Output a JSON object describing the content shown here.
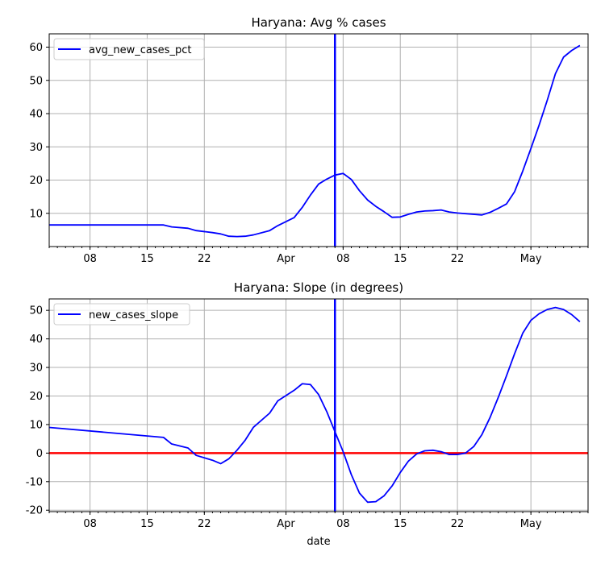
{
  "chart_data": [
    {
      "type": "line",
      "title": "Haryana: Avg % cases",
      "xlabel": "",
      "ylabel": "",
      "x_axis": "date",
      "xlim": [
        "2020-03-03",
        "2020-05-08"
      ],
      "ylim": [
        0,
        64
      ],
      "yticks": [
        10,
        20,
        30,
        40,
        50,
        60
      ],
      "xticks": [
        {
          "date": "2020-03-08",
          "label": "08"
        },
        {
          "date": "2020-03-15",
          "label": "15"
        },
        {
          "date": "2020-03-22",
          "label": "22"
        },
        {
          "date": "2020-04-01",
          "label": "Apr"
        },
        {
          "date": "2020-04-08",
          "label": "08"
        },
        {
          "date": "2020-04-15",
          "label": "15"
        },
        {
          "date": "2020-04-22",
          "label": "22"
        },
        {
          "date": "2020-05-01",
          "label": "May"
        }
      ],
      "grid": true,
      "legend_position": "top-left",
      "vline": {
        "date": "2020-04-07",
        "color": "#0000ff"
      },
      "series": [
        {
          "name": "avg_new_cases_pct",
          "color": "#0000ff",
          "points": [
            [
              "2020-03-03",
              6.5
            ],
            [
              "2020-03-17",
              6.5
            ],
            [
              "2020-03-18",
              5.9
            ],
            [
              "2020-03-20",
              5.5
            ],
            [
              "2020-03-21",
              4.8
            ],
            [
              "2020-03-22",
              4.5
            ],
            [
              "2020-03-23",
              4.2
            ],
            [
              "2020-03-24",
              3.8
            ],
            [
              "2020-03-25",
              3.1
            ],
            [
              "2020-03-26",
              3.0
            ],
            [
              "2020-03-27",
              3.1
            ],
            [
              "2020-03-28",
              3.5
            ],
            [
              "2020-03-30",
              4.8
            ],
            [
              "2020-03-31",
              6.3
            ],
            [
              "2020-04-02",
              8.7
            ],
            [
              "2020-04-03",
              11.8
            ],
            [
              "2020-04-04",
              15.5
            ],
            [
              "2020-04-05",
              18.8
            ],
            [
              "2020-04-06",
              20.3
            ],
            [
              "2020-04-07",
              21.5
            ],
            [
              "2020-04-08",
              22.0
            ],
            [
              "2020-04-09",
              20.2
            ],
            [
              "2020-04-10",
              16.8
            ],
            [
              "2020-04-11",
              14.0
            ],
            [
              "2020-04-12",
              12.1
            ],
            [
              "2020-04-13",
              10.5
            ],
            [
              "2020-04-14",
              8.8
            ],
            [
              "2020-04-15",
              8.9
            ],
            [
              "2020-04-16",
              9.7
            ],
            [
              "2020-04-17",
              10.4
            ],
            [
              "2020-04-18",
              10.7
            ],
            [
              "2020-04-19",
              10.8
            ],
            [
              "2020-04-20",
              11.0
            ],
            [
              "2020-04-21",
              10.4
            ],
            [
              "2020-04-22",
              10.1
            ],
            [
              "2020-04-25",
              9.5
            ],
            [
              "2020-04-26",
              10.3
            ],
            [
              "2020-04-27",
              11.5
            ],
            [
              "2020-04-28",
              12.8
            ],
            [
              "2020-04-29",
              16.5
            ],
            [
              "2020-04-30",
              22.7
            ],
            [
              "2020-05-01",
              29.5
            ],
            [
              "2020-05-02",
              36.5
            ],
            [
              "2020-05-03",
              44.0
            ],
            [
              "2020-05-04",
              52.0
            ],
            [
              "2020-05-05",
              57.0
            ],
            [
              "2020-05-06",
              59.0
            ],
            [
              "2020-05-07",
              60.5
            ]
          ]
        }
      ]
    },
    {
      "type": "line",
      "title": "Haryana: Slope (in degrees)",
      "xlabel": "date",
      "ylabel": "",
      "x_axis": "date",
      "xlim": [
        "2020-03-03",
        "2020-05-08"
      ],
      "ylim": [
        -20.5,
        54
      ],
      "yticks": [
        -20,
        -10,
        0,
        10,
        20,
        30,
        40,
        50
      ],
      "xticks": [
        {
          "date": "2020-03-08",
          "label": "08"
        },
        {
          "date": "2020-03-15",
          "label": "15"
        },
        {
          "date": "2020-03-22",
          "label": "22"
        },
        {
          "date": "2020-04-01",
          "label": "Apr"
        },
        {
          "date": "2020-04-08",
          "label": "08"
        },
        {
          "date": "2020-04-15",
          "label": "15"
        },
        {
          "date": "2020-04-22",
          "label": "22"
        },
        {
          "date": "2020-05-01",
          "label": "May"
        }
      ],
      "grid": true,
      "legend_position": "top-left",
      "vline": {
        "date": "2020-04-07",
        "color": "#0000ff"
      },
      "hline": {
        "y": 0,
        "color": "#ff0000"
      },
      "series": [
        {
          "name": "new_cases_slope",
          "color": "#0000ff",
          "points": [
            [
              "2020-03-03",
              9.0
            ],
            [
              "2020-03-17",
              5.5
            ],
            [
              "2020-03-18",
              3.2
            ],
            [
              "2020-03-20",
              1.8
            ],
            [
              "2020-03-21",
              -0.8
            ],
            [
              "2020-03-23",
              -2.5
            ],
            [
              "2020-03-24",
              -3.7
            ],
            [
              "2020-03-25",
              -2.0
            ],
            [
              "2020-03-26",
              1.0
            ],
            [
              "2020-03-27",
              4.5
            ],
            [
              "2020-03-28",
              9.0
            ],
            [
              "2020-03-30",
              14.0
            ],
            [
              "2020-03-31",
              18.3
            ],
            [
              "2020-04-02",
              22.0
            ],
            [
              "2020-04-03",
              24.3
            ],
            [
              "2020-04-04",
              24.0
            ],
            [
              "2020-04-05",
              20.5
            ],
            [
              "2020-04-06",
              14.5
            ],
            [
              "2020-04-07",
              7.5
            ],
            [
              "2020-04-08",
              0.5
            ],
            [
              "2020-04-09",
              -7.5
            ],
            [
              "2020-04-10",
              -14.0
            ],
            [
              "2020-04-11",
              -17.2
            ],
            [
              "2020-04-12",
              -17.0
            ],
            [
              "2020-04-13",
              -15.0
            ],
            [
              "2020-04-14",
              -11.5
            ],
            [
              "2020-04-15",
              -6.8
            ],
            [
              "2020-04-16",
              -2.8
            ],
            [
              "2020-04-17",
              -0.3
            ],
            [
              "2020-04-18",
              0.8
            ],
            [
              "2020-04-19",
              1.0
            ],
            [
              "2020-04-20",
              0.5
            ],
            [
              "2020-04-21",
              -0.5
            ],
            [
              "2020-04-22",
              -0.5
            ],
            [
              "2020-04-23",
              0.0
            ],
            [
              "2020-04-24",
              2.3
            ],
            [
              "2020-04-25",
              6.5
            ],
            [
              "2020-04-26",
              12.5
            ],
            [
              "2020-04-27",
              19.5
            ],
            [
              "2020-04-28",
              27.0
            ],
            [
              "2020-04-29",
              34.8
            ],
            [
              "2020-04-30",
              42.0
            ],
            [
              "2020-05-01",
              46.5
            ],
            [
              "2020-05-02",
              48.8
            ],
            [
              "2020-05-03",
              50.3
            ],
            [
              "2020-05-04",
              51.0
            ],
            [
              "2020-05-05",
              50.3
            ],
            [
              "2020-05-06",
              48.5
            ],
            [
              "2020-05-07",
              46.0
            ]
          ]
        }
      ]
    }
  ]
}
